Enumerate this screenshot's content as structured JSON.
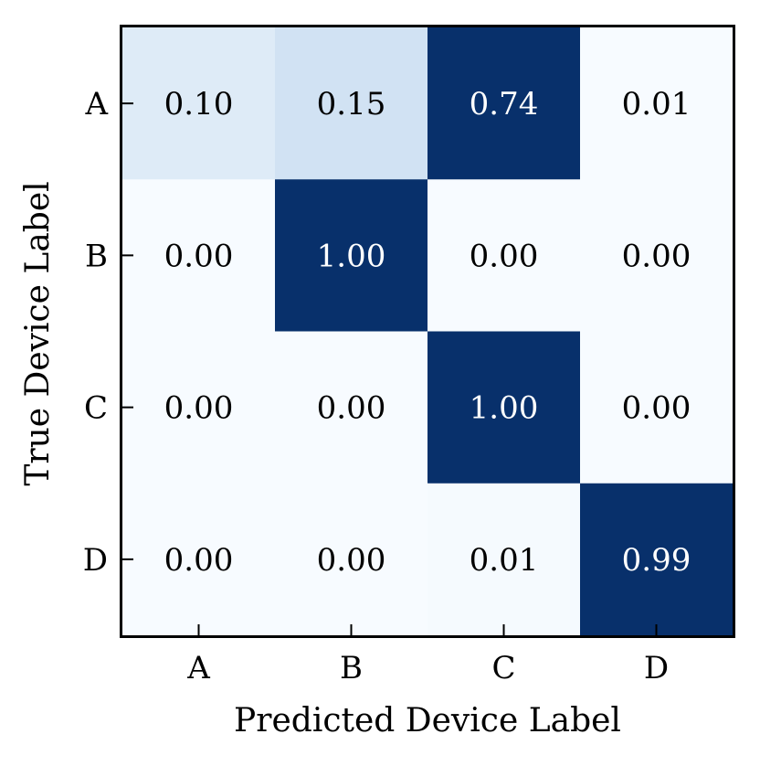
{
  "chart_data": {
    "type": "heatmap",
    "title": "",
    "xlabel": "Predicted Device Label",
    "ylabel": "True Device Label",
    "x_categories": [
      "A",
      "B",
      "C",
      "D"
    ],
    "y_categories": [
      "A",
      "B",
      "C",
      "D"
    ],
    "values": [
      [
        0.1,
        0.15,
        0.74,
        0.01
      ],
      [
        0.0,
        1.0,
        0.0,
        0.0
      ],
      [
        0.0,
        0.0,
        1.0,
        0.0
      ],
      [
        0.0,
        0.0,
        0.01,
        0.99
      ]
    ],
    "value_labels": [
      [
        "0.10",
        "0.15",
        "0.74",
        "0.01"
      ],
      [
        "0.00",
        "1.00",
        "0.00",
        "0.00"
      ],
      [
        "0.00",
        "0.00",
        "1.00",
        "0.00"
      ],
      [
        "0.00",
        "0.00",
        "0.01",
        "0.99"
      ]
    ],
    "colormap": "Blues",
    "colorbar": false,
    "colors": {
      "light_text": "#ffffff",
      "dark_text": "#000000"
    }
  }
}
